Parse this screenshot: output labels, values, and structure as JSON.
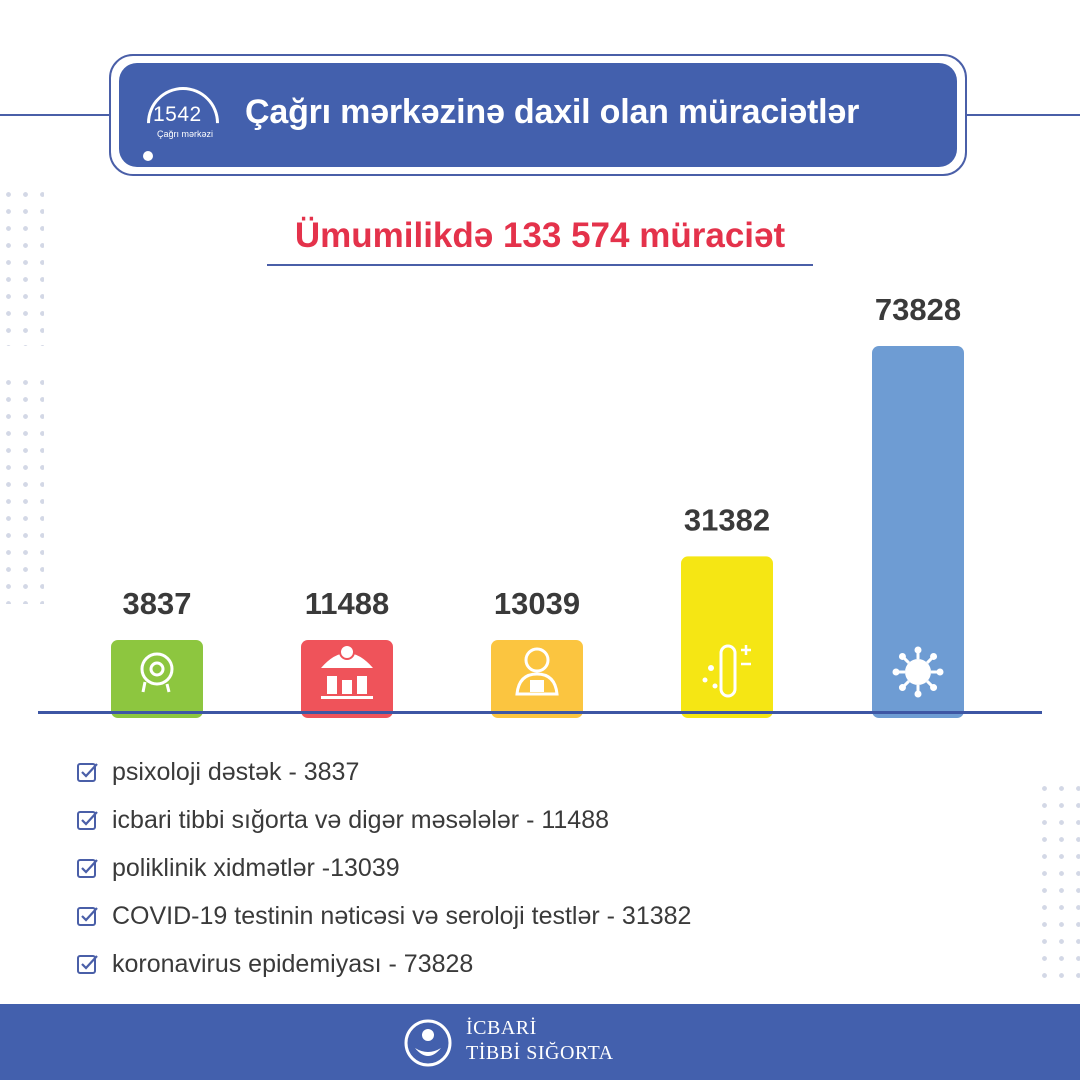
{
  "header": {
    "logo_number": "1542",
    "logo_subtitle": "Çağrı mərkəzi",
    "title": "Çağrı mərkəzinə daxil olan müraciətlər"
  },
  "total": {
    "prefix": "Ümumilikdə",
    "value": "133 574",
    "suffix": "müraciət"
  },
  "chart_data": {
    "type": "bar",
    "categories": [
      "psixoloji dəstək",
      "icbari tibbi sığorta və digər məsələlər",
      "poliklinik xidmətlər",
      "COVID-19 testinin nəticəsi və seroloji testlər",
      "koronavirus epidemiyası"
    ],
    "values": [
      3837,
      11488,
      13039,
      31382,
      73828
    ],
    "value_labels": [
      "3837",
      "11488",
      "13039",
      "31382",
      "73828"
    ],
    "colors": [
      "#8dc63f",
      "#ef535a",
      "#fbc540",
      "#f5e614",
      "#6e9cd3"
    ],
    "icons": [
      "head-gear-icon",
      "umbrella-family-icon",
      "doctor-icon",
      "test-tube-icon",
      "virus-icon"
    ],
    "ylim": [
      0,
      73828
    ],
    "grid": false,
    "legend": "bottom"
  },
  "legend": [
    "psixoloji dəstək - 3837",
    "icbari tibbi sığorta və digər məsələlər - 11488",
    "poliklinik xidmətlər -13039",
    "COVID-19 testinin nəticəsi və seroloji testlər - 31382",
    "koronavirus epidemiyası - 73828"
  ],
  "footer": {
    "line1": "İCBARİ",
    "line2": "TİBBİ SIĞORTA"
  },
  "colors": {
    "brand_blue": "#4360ad",
    "accent_red": "#e4324b"
  }
}
